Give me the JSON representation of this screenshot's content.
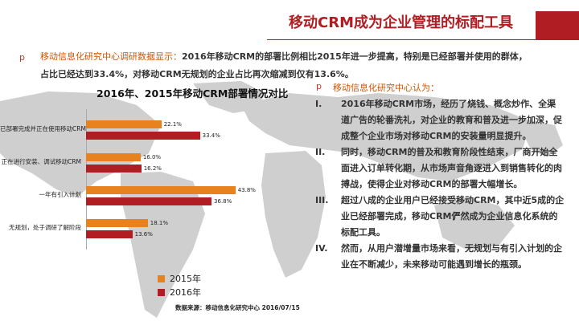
{
  "header": {
    "title": "移动CRM成为企业管理的标配工具"
  },
  "lead": {
    "bullet": "p",
    "source_label": "移动信息化研究中心调研数据显示：",
    "line1": "2016年移动CRM的部署比例相比2015年进一步提高，特别是已经部署并使用的群体，",
    "line2": "占比已经达到33.4%，对移动CRM无规划的企业占比再次缩减到仅有13.6%。"
  },
  "chart_data": {
    "type": "bar",
    "title": "2016年、2015年移动CRM部署情况对比",
    "categories": [
      "已部署完成并正在使用移动CRM",
      "正在进行安装、调试移动CRM",
      "一年有引入计划",
      "无规划，处于调研了解阶段"
    ],
    "series": [
      {
        "name": "2015年",
        "values": [
          22.1,
          16.0,
          43.8,
          18.1
        ],
        "labels": [
          "22.1%",
          "16.0%",
          "43.8%",
          "18.1%"
        ]
      },
      {
        "name": "2016年",
        "values": [
          33.4,
          16.2,
          36.8,
          13.6
        ],
        "labels": [
          "33.4%",
          "16.2%",
          "36.8%",
          "13.6%"
        ]
      }
    ],
    "colors": [
      "#e8821e",
      "#b01e23"
    ],
    "xlim": [
      0,
      50
    ],
    "source": "数据来源：移动信息化研究中心 2016/07/15"
  },
  "right": {
    "bullet": "p",
    "lead": "移动信息化研究中心认为：",
    "points": [
      {
        "num": "I.",
        "text": "2016年移动CRM市场，经历了烧钱、概念炒作、全渠道广告的轮番洗礼，对企业的教育和普及进一步加深，促成整个企业市场对移动CRM的安装量明显提升。"
      },
      {
        "num": "II.",
        "text": "同时，移动CRM的普及和教育阶段性结束，厂商开始全面进入订单转化期，从市场声音角逐进入到销售转化的肉搏战，使得企业对移动CRM的部署大幅增长。"
      },
      {
        "num": "III.",
        "text": "超过八成的企业用户已经接受移动CRM，其中近5成的企业已经部署完成，移动CRM俨然成为企业信息化系统的标配工具。"
      },
      {
        "num": "IV.",
        "text": "然而，从用户潜增量市场来看，无规划与有引入计划的企业在不断减少，未来移动可能遇到增长的瓶颈。"
      }
    ]
  }
}
